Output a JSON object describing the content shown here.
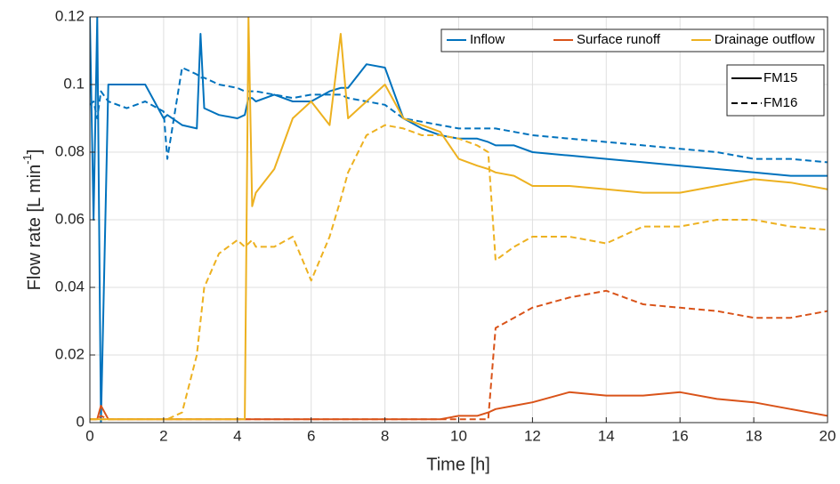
{
  "chart_data": {
    "type": "line",
    "xlabel": "Time [h]",
    "ylabel": [
      "Flow rate [L min",
      "-1",
      "]"
    ],
    "xlim": [
      0,
      20
    ],
    "xticks": [
      0,
      2,
      4,
      6,
      8,
      10,
      12,
      14,
      16,
      18,
      20
    ],
    "ylim": [
      0,
      0.12
    ],
    "yticks": [
      0,
      0.02,
      0.04,
      0.06,
      0.08,
      0.1,
      0.12
    ],
    "grid": true,
    "x": [
      0,
      0.1,
      0.2,
      0.3,
      0.5,
      1,
      1.5,
      2,
      2.1,
      2.5,
      2.9,
      3,
      3.1,
      3.5,
      4,
      4.2,
      4.3,
      4.4,
      4.5,
      5,
      5.5,
      6,
      6.5,
      6.8,
      7,
      7.5,
      8,
      8.5,
      9,
      9.5,
      10,
      10.5,
      10.8,
      11,
      11.5,
      12,
      13,
      14,
      15,
      16,
      17,
      18,
      19,
      20
    ],
    "line_styles": [
      {
        "name": "FM15",
        "dash": "solid"
      },
      {
        "name": "FM16",
        "dash": "dashed"
      }
    ],
    "series": [
      {
        "name": "Inflow",
        "color": "#0072bd",
        "values": [
          [
            0.12,
            0.06,
            0.12,
            0.0,
            0.1,
            0.1,
            0.1,
            0.09,
            0.091,
            0.088,
            0.087,
            0.115,
            0.093,
            0.091,
            0.09,
            0.091,
            0.096,
            0.096,
            0.095,
            0.097,
            0.095,
            0.095,
            0.098,
            0.099,
            0.099,
            0.106,
            0.105,
            0.09,
            0.087,
            0.085,
            0.084,
            0.084,
            0.083,
            0.082,
            0.082,
            0.08,
            0.079,
            0.078,
            0.077,
            0.076,
            0.075,
            0.074,
            0.073,
            0.073
          ],
          [
            0.094,
            0.095,
            0.09,
            0.098,
            0.095,
            0.093,
            0.095,
            0.092,
            0.078,
            0.105,
            0.103,
            0.102,
            0.102,
            0.1,
            0.099,
            0.098,
            0.098,
            0.098,
            0.098,
            0.097,
            0.096,
            0.097,
            0.097,
            0.097,
            0.096,
            0.095,
            0.094,
            0.09,
            0.089,
            0.088,
            0.087,
            0.087,
            0.087,
            0.087,
            0.086,
            0.085,
            0.084,
            0.083,
            0.082,
            0.081,
            0.08,
            0.078,
            0.078,
            0.077
          ]
        ]
      },
      {
        "name": "Surface runoff",
        "color": "#d95319",
        "values": [
          [
            0.001,
            0.001,
            0.001,
            0.005,
            0.001,
            0.001,
            0.001,
            0.001,
            0.001,
            0.001,
            0.001,
            0.001,
            0.001,
            0.001,
            0.001,
            0.001,
            0.001,
            0.001,
            0.001,
            0.001,
            0.001,
            0.001,
            0.001,
            0.001,
            0.001,
            0.001,
            0.001,
            0.001,
            0.001,
            0.001,
            0.002,
            0.002,
            0.003,
            0.004,
            0.005,
            0.006,
            0.009,
            0.008,
            0.008,
            0.009,
            0.007,
            0.006,
            0.004,
            0.002
          ],
          [
            0.001,
            0.001,
            0.001,
            0.002,
            0.001,
            0.001,
            0.001,
            0.001,
            0.001,
            0.001,
            0.001,
            0.001,
            0.001,
            0.001,
            0.001,
            0.001,
            0.001,
            0.001,
            0.001,
            0.001,
            0.001,
            0.001,
            0.001,
            0.001,
            0.001,
            0.001,
            0.001,
            0.001,
            0.001,
            0.001,
            0.001,
            0.001,
            0.001,
            0.028,
            0.031,
            0.034,
            0.037,
            0.039,
            0.035,
            0.034,
            0.033,
            0.031,
            0.031,
            0.033
          ]
        ]
      },
      {
        "name": "Drainage outflow",
        "color": "#edb120",
        "values": [
          [
            0.001,
            0.001,
            0.001,
            0.001,
            0.001,
            0.001,
            0.001,
            0.001,
            0.001,
            0.001,
            0.001,
            0.001,
            0.001,
            0.001,
            0.001,
            0.001,
            0.12,
            0.064,
            0.068,
            0.075,
            0.09,
            0.095,
            0.088,
            0.115,
            0.09,
            0.095,
            0.1,
            0.09,
            0.088,
            0.086,
            0.078,
            0.076,
            0.075,
            0.074,
            0.073,
            0.07,
            0.07,
            0.069,
            0.068,
            0.068,
            0.07,
            0.072,
            0.071,
            0.069
          ],
          [
            0.001,
            0.001,
            0.001,
            0.001,
            0.001,
            0.001,
            0.001,
            0.001,
            0.001,
            0.003,
            0.02,
            0.03,
            0.04,
            0.05,
            0.054,
            0.052,
            0.053,
            0.054,
            0.052,
            0.052,
            0.055,
            0.042,
            0.055,
            0.066,
            0.074,
            0.085,
            0.088,
            0.087,
            0.085,
            0.085,
            0.084,
            0.082,
            0.08,
            0.048,
            0.052,
            0.055,
            0.055,
            0.053,
            0.058,
            0.058,
            0.06,
            0.06,
            0.058,
            0.057
          ]
        ]
      }
    ]
  }
}
